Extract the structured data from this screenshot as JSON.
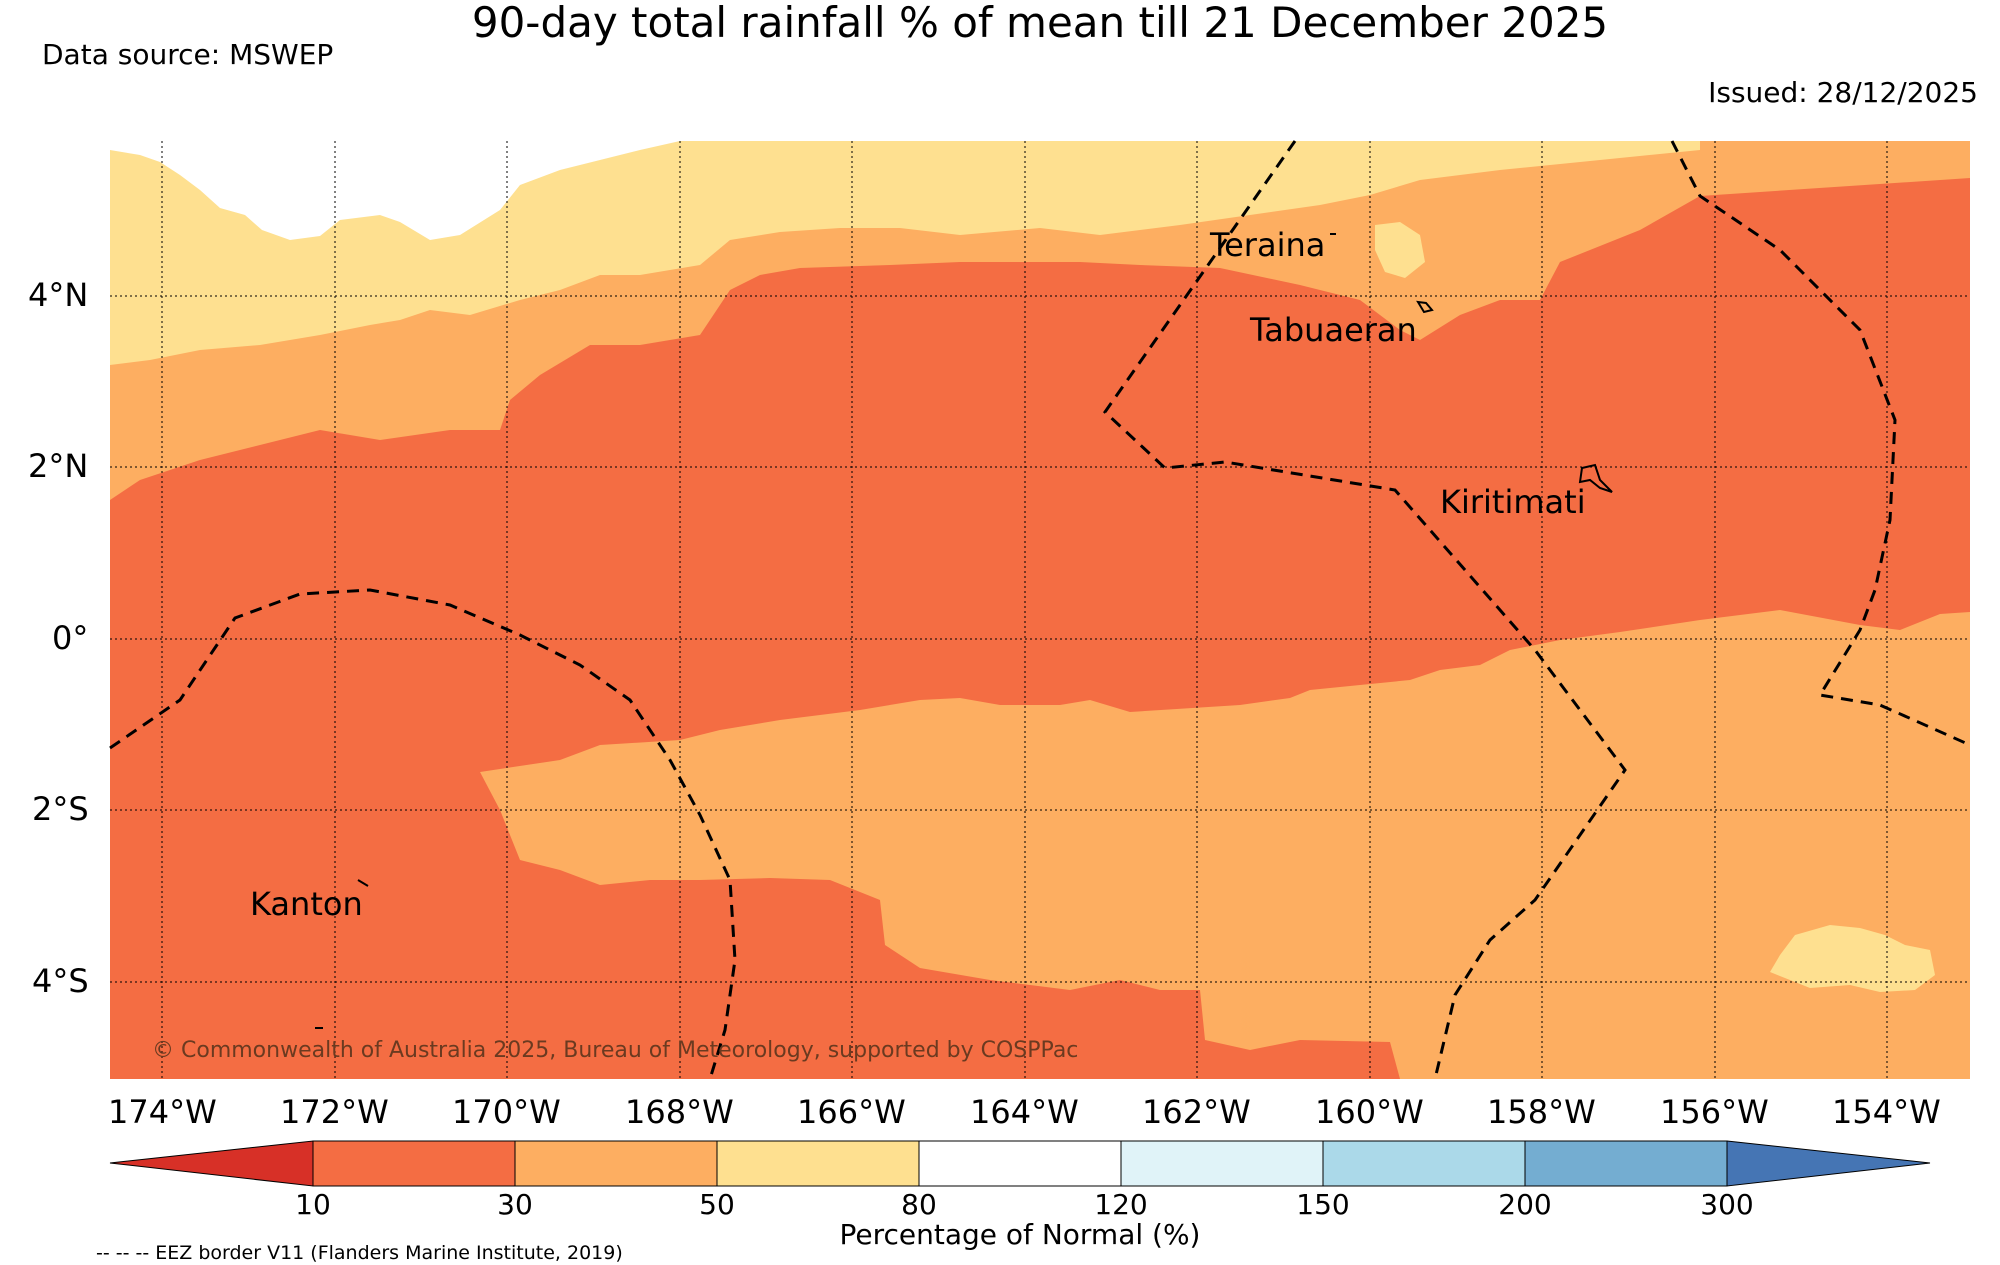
{
  "title": "90-day total rainfall % of mean till 21 December 2025",
  "data_source": "Data source: MSWEP",
  "issued": "Issued: 28/12/2025",
  "credit": "© Commonwealth of Australia 2025, Bureau of Meteorology, supported by COSPPac",
  "eez_note": "-- -- -- EEZ border V11 (Flanders Marine Institute, 2019)",
  "latitude_labels": [
    "4°N",
    "2°N",
    "0°",
    "2°S",
    "4°S"
  ],
  "longitude_labels": [
    "174°W",
    "172°W",
    "170°W",
    "168°W",
    "166°W",
    "164°W",
    "162°W",
    "160°W",
    "158°W",
    "156°W",
    "154°W"
  ],
  "places": {
    "teraina": "Teraina",
    "tabuaeran": "Tabuaeran",
    "kiritimati": "Kiritimati",
    "kanton": "Kanton"
  },
  "colorbar": {
    "title": "Percentage of Normal (%)",
    "ticks": [
      "10",
      "30",
      "50",
      "80",
      "120",
      "150",
      "200",
      "300"
    ],
    "colors": [
      "#d73027",
      "#f46d43",
      "#fdae61",
      "#fee090",
      "#ffffff",
      "#e0f3f8",
      "#abd9e9",
      "#74add1",
      "#4575b4"
    ]
  }
}
